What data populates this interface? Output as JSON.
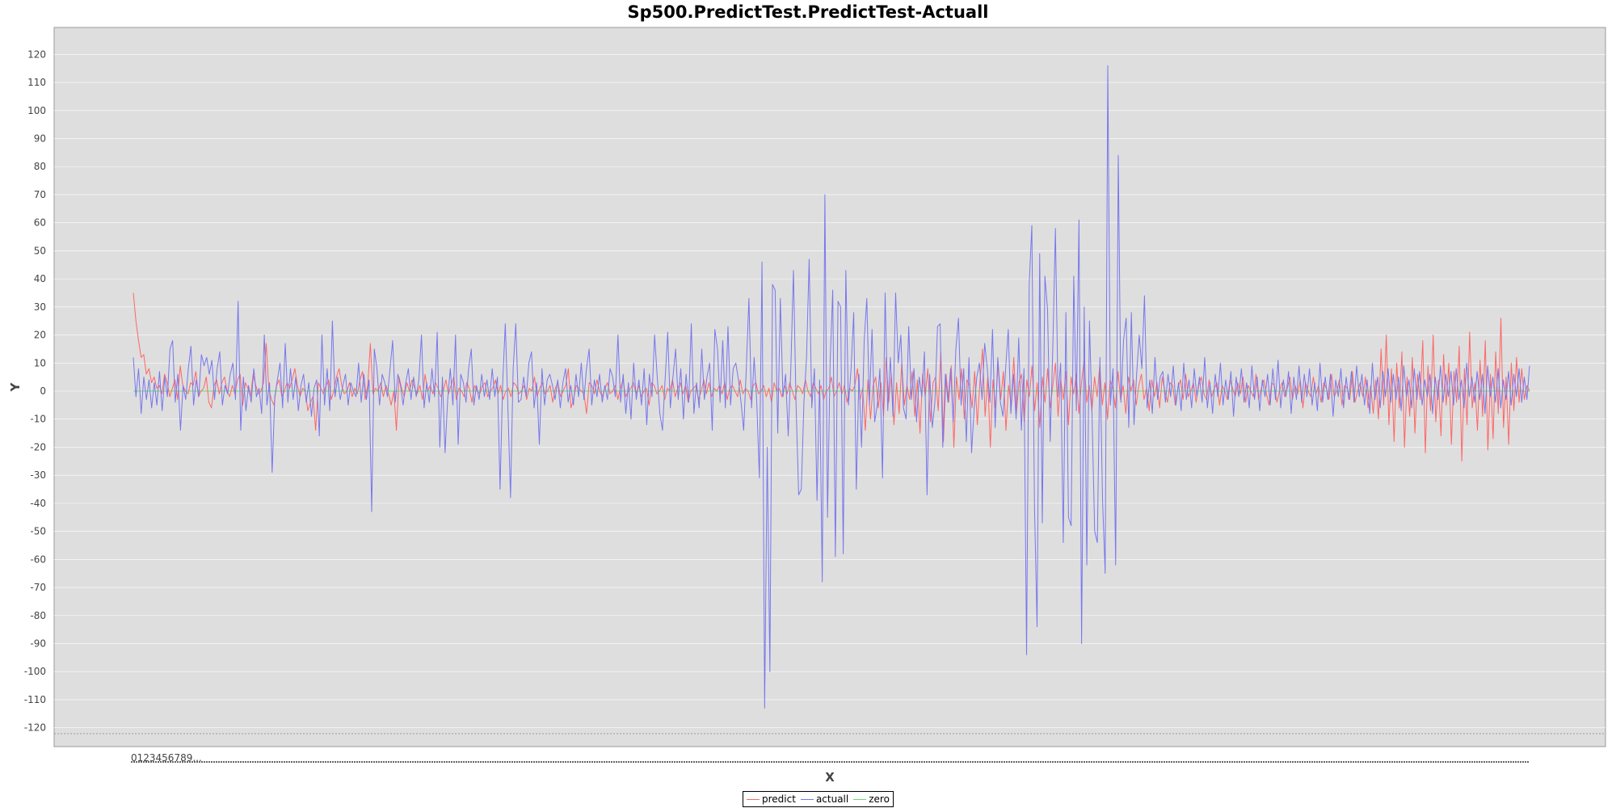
{
  "chart_data": {
    "type": "line",
    "title": "Sp500.PredictTest.PredictTest-Actuall",
    "xlabel": "X",
    "ylabel": "Y",
    "ylim": [
      -125,
      125
    ],
    "yticks": [
      -120,
      -110,
      -100,
      -90,
      -80,
      -70,
      -60,
      -50,
      -40,
      -30,
      -20,
      -10,
      0,
      10,
      20,
      30,
      40,
      50,
      60,
      70,
      80,
      90,
      100,
      110,
      120
    ],
    "x_tick_label": "0123456789...",
    "x_count": 520,
    "grid": true,
    "legend_position": "bottom",
    "series": [
      {
        "name": "predict",
        "color": "#ff6666",
        "values": [
          35,
          25,
          18,
          12,
          13,
          6,
          8,
          3,
          5,
          1,
          2,
          -1,
          6,
          3,
          -2,
          1,
          4,
          -3,
          9,
          2,
          0,
          -1,
          3,
          2,
          7,
          -2,
          0,
          1,
          5,
          -4,
          -6,
          2,
          4,
          -1,
          3,
          5,
          0,
          -2,
          2,
          -1,
          4,
          6,
          -5,
          3,
          1,
          -2,
          6,
          2,
          -1,
          0,
          3,
          17,
          1,
          -3,
          -5,
          2,
          4,
          -2,
          0,
          3,
          1,
          4,
          8,
          2,
          -2,
          1,
          0,
          -7,
          -4,
          -2,
          -14,
          3,
          1,
          -1,
          2,
          4,
          -3,
          0,
          5,
          8,
          2,
          -1,
          0,
          3,
          -2,
          1,
          -1,
          4,
          7,
          -3,
          2,
          17,
          -1,
          1,
          0,
          3,
          -2,
          2,
          -1,
          -5,
          0,
          -14,
          5,
          1,
          -2,
          3,
          0,
          4,
          1,
          -1,
          2,
          -3,
          6,
          0,
          2,
          -1,
          3,
          1,
          -2,
          0,
          4,
          -1,
          2,
          5,
          -3,
          1,
          0,
          -2,
          3,
          1,
          -4,
          2,
          0,
          -1,
          2,
          3,
          -2,
          0,
          1,
          4,
          -1,
          2,
          -3,
          0,
          1,
          -2,
          3,
          2,
          -1,
          0,
          2,
          -3,
          1,
          0,
          5,
          -2,
          1,
          3,
          -1,
          0,
          2,
          -4,
          1,
          3,
          -2,
          0,
          2,
          8,
          -6,
          -3,
          2,
          1,
          0,
          -1,
          -8,
          3,
          2,
          -1,
          4,
          0,
          -2,
          1,
          3,
          -1,
          0,
          2,
          -3,
          1,
          4,
          -2,
          0,
          1,
          3,
          -1,
          2,
          -2,
          0,
          1,
          -5,
          3,
          2,
          -1,
          0,
          2,
          -3,
          1,
          0,
          4,
          -2,
          1,
          3,
          -1,
          2,
          -4,
          0,
          1,
          2,
          -3,
          0,
          4,
          -1,
          3,
          -2,
          1,
          0,
          2,
          -1,
          3,
          -3,
          1,
          2,
          0,
          -2,
          4,
          -1,
          1,
          0,
          -3,
          2,
          3,
          -1,
          0,
          2,
          -2,
          1,
          -4,
          3,
          0,
          1,
          -2,
          2,
          -1,
          3,
          0,
          -3,
          2,
          1,
          -1,
          4,
          0,
          -2,
          3,
          1,
          -1,
          2,
          -3,
          0,
          1,
          5,
          -2,
          0,
          3,
          -1,
          2,
          -4,
          1,
          0,
          2,
          8,
          -3,
          1,
          -14,
          4,
          -10,
          2,
          5,
          -6,
          3,
          -9,
          12,
          -4,
          6,
          -12,
          3,
          -8,
          10,
          -5,
          2,
          -3,
          7,
          -9,
          4,
          -15,
          6,
          -2,
          8,
          -11,
          3,
          5,
          -7,
          14,
          -18,
          6,
          -4,
          9,
          -20,
          5,
          -3,
          8,
          -10,
          4,
          2,
          -6,
          7,
          -12,
          3,
          15,
          -9,
          5,
          -20,
          4,
          -6,
          10,
          -3,
          7,
          -14,
          2,
          -5,
          12,
          -8,
          3,
          6,
          -11,
          4,
          -2,
          9,
          -7,
          3,
          -13,
          5,
          -4,
          8,
          -6,
          2,
          10,
          -9,
          4,
          -3,
          7,
          -12,
          5,
          -1,
          6,
          -8,
          3,
          11,
          -4,
          2,
          -7,
          5,
          -2,
          9,
          -5,
          3,
          -10,
          4,
          1,
          -6,
          7,
          -3,
          2,
          -8,
          5,
          0,
          4,
          -5,
          2,
          6,
          -3,
          1,
          -7,
          4,
          -2,
          3,
          -6,
          5,
          0,
          -4,
          3,
          2,
          -5,
          1,
          4,
          -3,
          6,
          -2,
          0,
          3,
          -4,
          2,
          5,
          -1,
          -3,
          4,
          -2,
          1,
          3,
          -5,
          2,
          0,
          -3,
          4,
          1,
          -2,
          3,
          -1,
          5,
          -4,
          2,
          0,
          -2,
          6,
          -3,
          1,
          4,
          -1,
          -5,
          3,
          2,
          -4,
          0,
          3,
          -2,
          1,
          5,
          -3,
          2,
          -1,
          4,
          -6,
          3,
          0,
          -2,
          5,
          -1,
          2,
          -4,
          3,
          1,
          -3,
          6,
          -2,
          0,
          4,
          -5,
          2,
          1,
          -3,
          7,
          -4,
          0,
          3,
          -2,
          5,
          -6,
          2,
          -8,
          4,
          -10,
          15,
          -5,
          20,
          -12,
          8,
          -18,
          10,
          -6,
          14,
          -20,
          5,
          -9,
          12,
          -15,
          6,
          -3,
          18,
          -22,
          9,
          -7,
          20,
          -11,
          4,
          -16,
          13,
          -5,
          10,
          -19,
          7,
          -4,
          16,
          -25,
          8,
          -12,
          21,
          -6,
          3,
          -14,
          11,
          -9,
          18,
          -21,
          6,
          -17,
          14,
          -8,
          26,
          -13,
          5,
          -19,
          10,
          -7,
          12,
          -4,
          8,
          -3,
          2,
          0
        ]
      },
      {
        "name": "actuall",
        "color": "#7777ee",
        "values": [
          12,
          -2,
          8,
          -8,
          5,
          -3,
          4,
          -6,
          3,
          -5,
          7,
          -7,
          5,
          -2,
          15,
          18,
          -4,
          6,
          -14,
          2,
          -3,
          8,
          16,
          -5,
          4,
          -2,
          13,
          9,
          12,
          6,
          11,
          -3,
          8,
          14,
          -5,
          2,
          -1,
          6,
          10,
          -3,
          32,
          -14,
          5,
          -7,
          2,
          -4,
          8,
          -2,
          1,
          -8,
          20,
          -5,
          3,
          -29,
          -2,
          4,
          10,
          -6,
          17,
          -4,
          8,
          -3,
          5,
          -7,
          2,
          6,
          -4,
          3,
          -9,
          1,
          4,
          -16,
          20,
          -5,
          8,
          -7,
          25,
          -2,
          5,
          -3,
          2,
          6,
          -5,
          3,
          0,
          -2,
          10,
          -4,
          6,
          -3,
          4,
          -43,
          15,
          8,
          -5,
          6,
          3,
          -2,
          8,
          18,
          -4,
          6,
          2,
          -5,
          3,
          8,
          -3,
          5,
          -2,
          4,
          20,
          -6,
          3,
          -4,
          8,
          -2,
          21,
          -20,
          5,
          -22,
          -3,
          8,
          -5,
          20,
          -19,
          6,
          3,
          -4,
          8,
          15,
          -5,
          2,
          -3,
          6,
          -2,
          4,
          -3,
          8,
          -2,
          5,
          -35,
          3,
          24,
          -6,
          -38,
          8,
          24,
          -4,
          -3,
          5,
          -2,
          10,
          14,
          -6,
          3,
          -19,
          8,
          -5,
          4,
          6,
          2,
          -3,
          4,
          -6,
          3,
          8,
          -4,
          2,
          -5,
          6,
          -2,
          10,
          -3,
          8,
          15,
          -5,
          4,
          -2,
          6,
          -4,
          2,
          -3,
          8,
          5,
          -2,
          20,
          -4,
          6,
          -8,
          3,
          -10,
          10,
          -3,
          4,
          -5,
          8,
          -12,
          6,
          -2,
          20,
          5,
          -8,
          -14,
          4,
          21,
          -6,
          5,
          15,
          -3,
          8,
          -10,
          6,
          -4,
          24,
          -8,
          3,
          -6,
          15,
          -3,
          5,
          10,
          -14,
          22,
          15,
          -4,
          18,
          -6,
          23,
          -5,
          8,
          10,
          4,
          -4,
          -14,
          8,
          33,
          -6,
          12,
          -4,
          -31,
          46,
          -113,
          -20,
          -100,
          38,
          36,
          -15,
          33,
          -2,
          6,
          -16,
          8,
          43,
          -5,
          -37,
          -35,
          -4,
          12,
          47,
          -6,
          8,
          -39,
          4,
          -68,
          70,
          -45,
          10,
          36,
          -59,
          32,
          30,
          -58,
          43,
          -5,
          8,
          28,
          -35,
          6,
          -20,
          18,
          33,
          -5,
          22,
          -11,
          -5,
          8,
          -31,
          35,
          -7,
          12,
          -9,
          35,
          10,
          20,
          -6,
          -10,
          23,
          -3,
          8,
          -11,
          5,
          -2,
          14,
          -37,
          6,
          -13,
          -4,
          23,
          24,
          -20,
          6,
          -4,
          8,
          -11,
          15,
          26,
          -5,
          8,
          -18,
          12,
          -22,
          -6,
          5,
          10,
          -3,
          17,
          8,
          -4,
          22,
          -13,
          12,
          -4,
          -9,
          8,
          22,
          -8,
          6,
          -10,
          19,
          -14,
          8,
          -94,
          38,
          59,
          -40,
          -84,
          49,
          -47,
          41,
          29,
          -18,
          15,
          58,
          -2,
          10,
          -54,
          28,
          -45,
          -48,
          41,
          -7,
          61,
          -90,
          30,
          -62,
          25,
          -9,
          -50,
          -54,
          12,
          -39,
          -65,
          116,
          -5,
          8,
          -62,
          84,
          -4,
          18,
          26,
          -13,
          28,
          -12,
          6,
          20,
          8,
          34,
          -6,
          4,
          -8,
          12,
          -3,
          5,
          7,
          -4,
          6,
          -2,
          9,
          -5,
          3,
          -7,
          10,
          -3,
          4,
          -6,
          8,
          -2,
          5,
          -4,
          12,
          -6,
          3,
          -8,
          6,
          -2,
          10,
          -5,
          4,
          -3,
          7,
          -9,
          5,
          -2,
          8,
          -4,
          3,
          -6,
          9,
          -3,
          5,
          -7,
          4,
          -2,
          6,
          -5,
          8,
          -3,
          11,
          -6,
          4,
          -2,
          7,
          -8,
          5,
          -3,
          9,
          -4,
          6,
          -2,
          8,
          -5,
          3,
          -7,
          10,
          -4,
          5,
          -3,
          6,
          -9,
          4,
          -2,
          8,
          -6,
          5,
          -3,
          7,
          -4,
          9,
          -2,
          6,
          -5,
          4,
          -8,
          10,
          -3,
          5,
          -6,
          7,
          -2,
          8,
          -4,
          6,
          -3,
          5,
          -7,
          9,
          -2,
          4,
          -6,
          8,
          -3,
          7,
          -5,
          4,
          -2,
          6,
          -8,
          5,
          -3,
          9,
          -4,
          6,
          -2,
          7,
          -5,
          8,
          -3,
          4,
          -6,
          10,
          -2,
          5,
          -4,
          7,
          -3,
          6,
          -8,
          9,
          -2,
          5,
          -4,
          8,
          -6,
          4,
          -3,
          7,
          -5,
          6,
          -2,
          8,
          -4,
          5,
          -3,
          9
        ]
      },
      {
        "name": "zero",
        "color": "#66dd66",
        "values": [
          0,
          0
        ]
      }
    ]
  }
}
